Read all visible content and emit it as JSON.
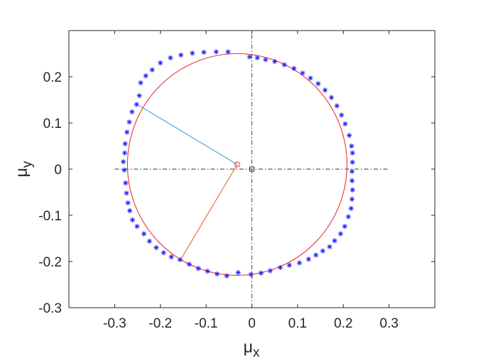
{
  "chart_data": {
    "type": "scatter",
    "title": "",
    "xlabel": {
      "symbol": "μ",
      "subscript": "x"
    },
    "ylabel": {
      "symbol": "μ",
      "subscript": "y"
    },
    "xlim": [
      -0.4,
      0.4
    ],
    "ylim": [
      -0.3,
      0.3
    ],
    "xticks": [
      {
        "value": -0.3,
        "label": "-0.3"
      },
      {
        "value": -0.2,
        "label": "-0.2"
      },
      {
        "value": -0.1,
        "label": "-0.1"
      },
      {
        "value": 0,
        "label": "0"
      },
      {
        "value": 0.1,
        "label": "0.1"
      },
      {
        "value": 0.2,
        "label": "0.2"
      },
      {
        "value": 0.3,
        "label": "0.3"
      }
    ],
    "yticks": [
      {
        "value": -0.3,
        "label": "-0.3"
      },
      {
        "value": -0.2,
        "label": "-0.2"
      },
      {
        "value": -0.1,
        "label": "-0.1"
      },
      {
        "value": 0,
        "label": "0"
      },
      {
        "value": 0.1,
        "label": "0.1"
      },
      {
        "value": 0.2,
        "label": "0.2"
      }
    ],
    "grid": false,
    "legend": "none",
    "colors": {
      "markers": "#1f1fff",
      "fitted_circle": "#e8333a",
      "radius_blue": "#4a9fd8",
      "radius_orange": "#e8663a",
      "reference_lines": "#333333"
    },
    "measured_points": {
      "marker": "asterisk",
      "points": [
        [
          -0.052,
          0.254
        ],
        [
          -0.078,
          0.254
        ],
        [
          -0.105,
          0.253
        ],
        [
          -0.13,
          0.251
        ],
        [
          -0.155,
          0.247
        ],
        [
          -0.178,
          0.241
        ],
        [
          -0.2,
          0.23
        ],
        [
          -0.218,
          0.215
        ],
        [
          -0.232,
          0.202
        ],
        [
          -0.243,
          0.187
        ],
        [
          -0.246,
          0.159
        ],
        [
          -0.252,
          0.14
        ],
        [
          -0.262,
          0.124
        ],
        [
          -0.268,
          0.102
        ],
        [
          -0.273,
          0.08
        ],
        [
          -0.277,
          0.055
        ],
        [
          -0.278,
          0.035
        ],
        [
          -0.281,
          0.016
        ],
        [
          -0.279,
          -0.002
        ],
        [
          -0.276,
          -0.03
        ],
        [
          -0.274,
          -0.052
        ],
        [
          -0.271,
          -0.073
        ],
        [
          -0.267,
          -0.09
        ],
        [
          -0.261,
          -0.11
        ],
        [
          -0.251,
          -0.124
        ],
        [
          -0.236,
          -0.14
        ],
        [
          -0.224,
          -0.156
        ],
        [
          -0.209,
          -0.17
        ],
        [
          -0.193,
          -0.181
        ],
        [
          -0.176,
          -0.19
        ],
        [
          -0.157,
          -0.196
        ],
        [
          -0.137,
          -0.206
        ],
        [
          -0.117,
          -0.215
        ],
        [
          -0.097,
          -0.221
        ],
        [
          -0.076,
          -0.227
        ],
        [
          -0.055,
          -0.231
        ],
        [
          -0.03,
          -0.224
        ],
        [
          -0.002,
          -0.228
        ],
        [
          0.02,
          -0.225
        ],
        [
          0.04,
          -0.22
        ],
        [
          0.062,
          -0.213
        ],
        [
          0.082,
          -0.208
        ],
        [
          0.104,
          -0.203
        ],
        [
          0.124,
          -0.195
        ],
        [
          0.14,
          -0.186
        ],
        [
          0.155,
          -0.177
        ],
        [
          0.17,
          -0.168
        ],
        [
          0.181,
          -0.155
        ],
        [
          0.194,
          -0.14
        ],
        [
          0.203,
          -0.124
        ],
        [
          0.211,
          -0.103
        ],
        [
          0.217,
          -0.085
        ],
        [
          0.219,
          -0.065
        ],
        [
          0.22,
          -0.045
        ],
        [
          0.219,
          -0.025
        ],
        [
          0.219,
          -0.005
        ],
        [
          0.22,
          0.015
        ],
        [
          0.22,
          0.035
        ],
        [
          0.218,
          0.05
        ],
        [
          0.213,
          0.073
        ],
        [
          0.204,
          0.098
        ],
        [
          0.196,
          0.117
        ],
        [
          0.186,
          0.137
        ],
        [
          0.174,
          0.155
        ],
        [
          0.16,
          0.171
        ],
        [
          0.145,
          0.185
        ],
        [
          0.128,
          0.197
        ],
        [
          0.111,
          0.208
        ],
        [
          0.092,
          0.218
        ],
        [
          0.071,
          0.226
        ],
        [
          0.05,
          0.233
        ],
        [
          0.03,
          0.237
        ],
        [
          0.012,
          0.241
        ],
        [
          -0.005,
          0.243
        ]
      ]
    },
    "fitted_circle": {
      "center": [
        -0.032,
        0.01
      ],
      "radius": 0.24
    },
    "center_marker": {
      "point": [
        -0.032,
        0.01
      ],
      "shape": "circle"
    },
    "origin_marker": {
      "point": [
        0,
        0
      ],
      "shape": "square"
    },
    "radius_lines": [
      {
        "from": [
          -0.032,
          0.01
        ],
        "to": [
          -0.247,
          0.138
        ],
        "color": "#4a9fd8"
      },
      {
        "from": [
          -0.032,
          0.01
        ],
        "to": [
          -0.154,
          -0.193
        ],
        "color": "#e8663a"
      }
    ],
    "reference_lines": {
      "horizontal": {
        "y": 0,
        "x_range": [
          -0.3,
          0.3
        ]
      },
      "vertical": {
        "x": 0,
        "y_range": [
          -0.3,
          0.3
        ]
      }
    }
  }
}
